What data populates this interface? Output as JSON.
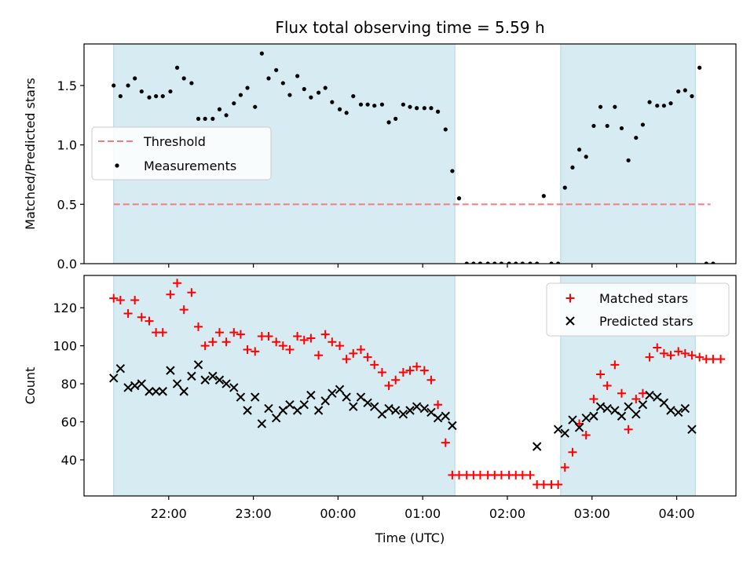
{
  "chart_data": {
    "type": "scatter",
    "title": "Flux total observing time = 5.59 h",
    "xlabel": "Time (UTC)",
    "x_ticks": [
      {
        "t": 22.0,
        "label": "22:00"
      },
      {
        "t": 23.0,
        "label": "23:00"
      },
      {
        "t": 24.0,
        "label": "00:00"
      },
      {
        "t": 25.0,
        "label": "01:00"
      },
      {
        "t": 26.0,
        "label": "02:00"
      },
      {
        "t": 27.0,
        "label": "03:00"
      },
      {
        "t": 28.0,
        "label": "04:00"
      }
    ],
    "xlim": [
      21.0,
      28.7
    ],
    "observing_windows": [
      [
        21.35,
        25.38
      ],
      [
        26.63,
        28.22
      ]
    ],
    "panels": [
      {
        "ylabel": "Matched/Predicted stars",
        "ylim": [
          0,
          1.85
        ],
        "y_ticks": [
          0.0,
          0.5,
          1.0,
          1.5
        ],
        "y_tick_labels": [
          "0.0",
          "0.5",
          "1.0",
          "1.5"
        ],
        "legend_position": "center-left",
        "threshold": {
          "name": "Threshold",
          "value": 0.5,
          "x_range": [
            21.35,
            28.4
          ],
          "color": "#f47c7c"
        },
        "measurements": {
          "name": "Measurements",
          "color": "#000000",
          "points": [
            [
              21.35,
              1.5
            ],
            [
              21.43,
              1.41
            ],
            [
              21.52,
              1.5
            ],
            [
              21.6,
              1.56
            ],
            [
              21.68,
              1.45
            ],
            [
              21.77,
              1.4
            ],
            [
              21.85,
              1.41
            ],
            [
              21.93,
              1.41
            ],
            [
              22.02,
              1.45
            ],
            [
              22.1,
              1.65
            ],
            [
              22.18,
              1.56
            ],
            [
              22.27,
              1.52
            ],
            [
              22.35,
              1.22
            ],
            [
              22.43,
              1.22
            ],
            [
              22.52,
              1.22
            ],
            [
              22.6,
              1.3
            ],
            [
              22.68,
              1.25
            ],
            [
              22.77,
              1.35
            ],
            [
              22.85,
              1.42
            ],
            [
              22.93,
              1.48
            ],
            [
              23.02,
              1.32
            ],
            [
              23.1,
              1.77
            ],
            [
              23.18,
              1.56
            ],
            [
              23.27,
              1.63
            ],
            [
              23.35,
              1.52
            ],
            [
              23.43,
              1.42
            ],
            [
              23.52,
              1.58
            ],
            [
              23.6,
              1.47
            ],
            [
              23.68,
              1.4
            ],
            [
              23.77,
              1.44
            ],
            [
              23.85,
              1.48
            ],
            [
              23.93,
              1.36
            ],
            [
              24.02,
              1.3
            ],
            [
              24.1,
              1.27
            ],
            [
              24.18,
              1.41
            ],
            [
              24.27,
              1.34
            ],
            [
              24.35,
              1.34
            ],
            [
              24.43,
              1.33
            ],
            [
              24.52,
              1.34
            ],
            [
              24.6,
              1.19
            ],
            [
              24.68,
              1.22
            ],
            [
              24.77,
              1.34
            ],
            [
              24.85,
              1.32
            ],
            [
              24.93,
              1.31
            ],
            [
              25.02,
              1.31
            ],
            [
              25.1,
              1.31
            ],
            [
              25.18,
              1.28
            ],
            [
              25.27,
              1.13
            ],
            [
              25.35,
              0.78
            ],
            [
              25.43,
              0.55
            ],
            [
              25.52,
              0.0
            ],
            [
              25.6,
              0.0
            ],
            [
              25.68,
              0.0
            ],
            [
              25.77,
              0.0
            ],
            [
              25.85,
              0.0
            ],
            [
              25.93,
              0.0
            ],
            [
              26.02,
              0.0
            ],
            [
              26.1,
              0.0
            ],
            [
              26.18,
              0.0
            ],
            [
              26.27,
              0.0
            ],
            [
              26.35,
              0.0
            ],
            [
              26.43,
              0.57
            ],
            [
              26.52,
              0.0
            ],
            [
              26.6,
              0.0
            ],
            [
              26.68,
              0.64
            ],
            [
              26.77,
              0.81
            ],
            [
              26.85,
              0.96
            ],
            [
              26.93,
              0.9
            ],
            [
              27.02,
              1.16
            ],
            [
              27.1,
              1.32
            ],
            [
              27.18,
              1.16
            ],
            [
              27.27,
              1.32
            ],
            [
              27.35,
              1.14
            ],
            [
              27.43,
              0.87
            ],
            [
              27.52,
              1.06
            ],
            [
              27.6,
              1.17
            ],
            [
              27.68,
              1.36
            ],
            [
              27.77,
              1.33
            ],
            [
              27.85,
              1.33
            ],
            [
              27.93,
              1.35
            ],
            [
              28.02,
              1.45
            ],
            [
              28.1,
              1.46
            ],
            [
              28.18,
              1.41
            ],
            [
              28.27,
              1.65
            ],
            [
              28.35,
              0.0
            ],
            [
              28.43,
              0.0
            ]
          ]
        }
      },
      {
        "ylabel": "Count",
        "ylim": [
          21,
          137
        ],
        "y_ticks": [
          40,
          60,
          80,
          100,
          120
        ],
        "y_tick_labels": [
          "40",
          "60",
          "80",
          "100",
          "120"
        ],
        "legend_position": "top-right",
        "series": [
          {
            "name": "Matched stars",
            "marker": "plus",
            "color": "#ff0000",
            "points": [
              [
                21.35,
                125
              ],
              [
                21.43,
                124
              ],
              [
                21.52,
                117
              ],
              [
                21.6,
                124
              ],
              [
                21.68,
                115
              ],
              [
                21.77,
                113
              ],
              [
                21.85,
                107
              ],
              [
                21.93,
                107
              ],
              [
                22.02,
                127
              ],
              [
                22.1,
                133
              ],
              [
                22.18,
                119
              ],
              [
                22.27,
                128
              ],
              [
                22.35,
                110
              ],
              [
                22.43,
                100
              ],
              [
                22.52,
                102
              ],
              [
                22.6,
                107
              ],
              [
                22.68,
                102
              ],
              [
                22.77,
                107
              ],
              [
                22.85,
                106
              ],
              [
                22.93,
                98
              ],
              [
                23.02,
                97
              ],
              [
                23.1,
                105
              ],
              [
                23.18,
                105
              ],
              [
                23.27,
                102
              ],
              [
                23.35,
                100
              ],
              [
                23.43,
                98
              ],
              [
                23.52,
                105
              ],
              [
                23.6,
                103
              ],
              [
                23.68,
                104
              ],
              [
                23.77,
                95
              ],
              [
                23.85,
                106
              ],
              [
                23.93,
                102
              ],
              [
                24.02,
                100
              ],
              [
                24.1,
                93
              ],
              [
                24.18,
                96
              ],
              [
                24.27,
                98
              ],
              [
                24.35,
                94
              ],
              [
                24.43,
                90
              ],
              [
                24.52,
                86
              ],
              [
                24.6,
                79
              ],
              [
                24.68,
                82
              ],
              [
                24.77,
                86
              ],
              [
                24.85,
                87
              ],
              [
                24.93,
                89
              ],
              [
                25.02,
                87
              ],
              [
                25.1,
                82
              ],
              [
                25.18,
                69
              ],
              [
                25.27,
                49
              ],
              [
                25.35,
                32
              ],
              [
                25.43,
                32
              ],
              [
                25.52,
                32
              ],
              [
                25.6,
                32
              ],
              [
                25.68,
                32
              ],
              [
                25.77,
                32
              ],
              [
                25.85,
                32
              ],
              [
                25.93,
                32
              ],
              [
                26.02,
                32
              ],
              [
                26.1,
                32
              ],
              [
                26.18,
                32
              ],
              [
                26.27,
                32
              ],
              [
                26.35,
                27
              ],
              [
                26.43,
                27
              ],
              [
                26.52,
                27
              ],
              [
                26.6,
                27
              ],
              [
                26.68,
                36
              ],
              [
                26.77,
                44
              ],
              [
                26.85,
                59
              ],
              [
                26.93,
                53
              ],
              [
                27.02,
                72
              ],
              [
                27.1,
                85
              ],
              [
                27.18,
                79
              ],
              [
                27.27,
                90
              ],
              [
                27.35,
                75
              ],
              [
                27.43,
                56
              ],
              [
                27.52,
                72
              ],
              [
                27.6,
                75
              ],
              [
                27.68,
                94
              ],
              [
                27.77,
                99
              ],
              [
                27.85,
                96
              ],
              [
                27.93,
                95
              ],
              [
                28.02,
                97
              ],
              [
                28.1,
                96
              ],
              [
                28.18,
                95
              ],
              [
                28.27,
                94
              ],
              [
                28.35,
                93
              ],
              [
                28.43,
                93
              ],
              [
                28.52,
                93
              ]
            ]
          },
          {
            "name": "Predicted stars",
            "marker": "x",
            "color": "#000000",
            "points": [
              [
                21.35,
                83
              ],
              [
                21.43,
                88
              ],
              [
                21.52,
                78
              ],
              [
                21.6,
                79
              ],
              [
                21.68,
                80
              ],
              [
                21.77,
                76
              ],
              [
                21.85,
                76
              ],
              [
                21.93,
                76
              ],
              [
                22.02,
                87
              ],
              [
                22.1,
                80
              ],
              [
                22.18,
                76
              ],
              [
                22.27,
                84
              ],
              [
                22.35,
                90
              ],
              [
                22.43,
                82
              ],
              [
                22.52,
                84
              ],
              [
                22.6,
                82
              ],
              [
                22.68,
                80
              ],
              [
                22.77,
                78
              ],
              [
                22.85,
                73
              ],
              [
                22.93,
                66
              ],
              [
                23.02,
                73
              ],
              [
                23.1,
                59
              ],
              [
                23.18,
                67
              ],
              [
                23.27,
                62
              ],
              [
                23.35,
                66
              ],
              [
                23.43,
                69
              ],
              [
                23.52,
                66
              ],
              [
                23.6,
                69
              ],
              [
                23.68,
                74
              ],
              [
                23.77,
                66
              ],
              [
                23.85,
                71
              ],
              [
                23.93,
                75
              ],
              [
                24.02,
                77
              ],
              [
                24.1,
                73
              ],
              [
                24.18,
                68
              ],
              [
                24.27,
                73
              ],
              [
                24.35,
                70
              ],
              [
                24.43,
                68
              ],
              [
                24.52,
                64
              ],
              [
                24.6,
                67
              ],
              [
                24.68,
                66
              ],
              [
                24.77,
                64
              ],
              [
                24.85,
                66
              ],
              [
                24.93,
                68
              ],
              [
                25.02,
                67
              ],
              [
                25.1,
                65
              ],
              [
                25.18,
                62
              ],
              [
                25.27,
                63
              ],
              [
                25.35,
                58
              ],
              [
                26.35,
                47
              ],
              [
                26.6,
                56
              ],
              [
                26.68,
                54
              ],
              [
                26.77,
                61
              ],
              [
                26.85,
                57
              ],
              [
                26.93,
                62
              ],
              [
                27.02,
                63
              ],
              [
                27.1,
                68
              ],
              [
                27.18,
                67
              ],
              [
                27.27,
                66
              ],
              [
                27.35,
                63
              ],
              [
                27.43,
                68
              ],
              [
                27.52,
                64
              ],
              [
                27.6,
                69
              ],
              [
                27.68,
                74
              ],
              [
                27.77,
                73
              ],
              [
                27.85,
                70
              ],
              [
                27.93,
                66
              ],
              [
                28.02,
                65
              ],
              [
                28.1,
                67
              ],
              [
                28.18,
                56
              ]
            ]
          }
        ]
      }
    ]
  }
}
